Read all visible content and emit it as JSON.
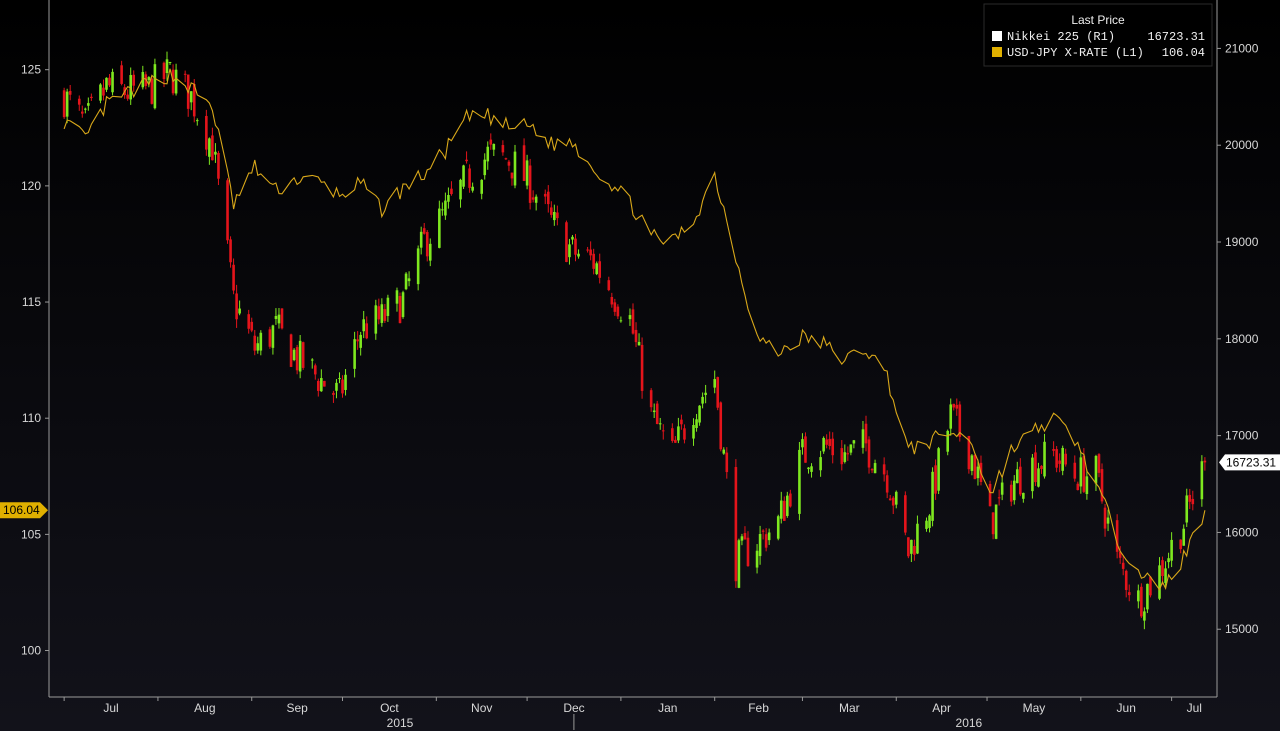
{
  "chart_data": {
    "type": "candlestick+line",
    "legend": {
      "title": "Last Price",
      "entries": [
        {
          "name": "Nikkei 225 (R1)",
          "value": "16723.31",
          "color": "#ffffff"
        },
        {
          "name": "USD-JPY X-RATE (L1)",
          "value": "106.04",
          "color": "#e0b000"
        }
      ],
      "placement": "top-right"
    },
    "x_axis": {
      "months": [
        "Jul",
        "Aug",
        "Sep",
        "Oct",
        "Nov",
        "Dec",
        "Jan",
        "Feb",
        "Mar",
        "Apr",
        "May",
        "Jun",
        "Jul"
      ],
      "years": [
        "2015",
        "2016"
      ]
    },
    "left_axis": {
      "ticks": [
        100,
        105,
        110,
        115,
        120,
        125
      ],
      "range": [
        98,
        128
      ]
    },
    "right_axis": {
      "ticks": [
        15000,
        16000,
        17000,
        18000,
        19000,
        20000,
        21000
      ],
      "range": [
        14300,
        21500
      ]
    },
    "last_labels": {
      "left": "106.04",
      "right": "16723.31"
    },
    "colors": {
      "up": "#7ee81f",
      "down": "#e4141b",
      "fx_line": "#d9a81a"
    },
    "usdjpy_weekly": [
      [
        "2015-07-01",
        122.8
      ],
      [
        "2015-07-08",
        122.0
      ],
      [
        "2015-07-15",
        123.5
      ],
      [
        "2015-07-22",
        124.0
      ],
      [
        "2015-07-29",
        124.4
      ],
      [
        "2015-08-05",
        124.8
      ],
      [
        "2015-08-12",
        124.2
      ],
      [
        "2015-08-19",
        123.4
      ],
      [
        "2015-08-26",
        119.2
      ],
      [
        "2015-09-02",
        120.8
      ],
      [
        "2015-09-09",
        119.8
      ],
      [
        "2015-09-16",
        120.3
      ],
      [
        "2015-09-23",
        120.2
      ],
      [
        "2015-09-30",
        119.6
      ],
      [
        "2015-10-07",
        120.1
      ],
      [
        "2015-10-14",
        119.0
      ],
      [
        "2015-10-21",
        119.9
      ],
      [
        "2015-10-28",
        120.5
      ],
      [
        "2015-11-04",
        121.5
      ],
      [
        "2015-11-11",
        122.9
      ],
      [
        "2015-11-18",
        123.0
      ],
      [
        "2015-11-25",
        122.5
      ],
      [
        "2015-12-02",
        122.6
      ],
      [
        "2015-12-09",
        121.8
      ],
      [
        "2015-12-16",
        121.9
      ],
      [
        "2015-12-23",
        120.8
      ],
      [
        "2016-01-04",
        119.3
      ],
      [
        "2016-01-11",
        117.8
      ],
      [
        "2016-01-18",
        117.6
      ],
      [
        "2016-01-25",
        118.5
      ],
      [
        "2016-02-01",
        120.5
      ],
      [
        "2016-02-08",
        117.0
      ],
      [
        "2016-02-15",
        113.5
      ],
      [
        "2016-02-22",
        112.8
      ],
      [
        "2016-03-01",
        113.5
      ],
      [
        "2016-03-08",
        113.2
      ],
      [
        "2016-03-15",
        112.5
      ],
      [
        "2016-03-22",
        113.0
      ],
      [
        "2016-03-29",
        111.8
      ],
      [
        "2016-04-05",
        108.6
      ],
      [
        "2016-04-12",
        109.0
      ],
      [
        "2016-04-19",
        109.4
      ],
      [
        "2016-04-26",
        109.0
      ],
      [
        "2016-05-02",
        106.7
      ],
      [
        "2016-05-09",
        108.6
      ],
      [
        "2016-05-16",
        109.4
      ],
      [
        "2016-05-23",
        110.0
      ],
      [
        "2016-05-30",
        109.1
      ],
      [
        "2016-06-06",
        107.2
      ],
      [
        "2016-06-13",
        104.8
      ],
      [
        "2016-06-20",
        103.5
      ],
      [
        "2016-06-27",
        102.5
      ],
      [
        "2016-07-05",
        104.0
      ],
      [
        "2016-07-12",
        106.04
      ]
    ],
    "nikkei_weekly": [
      [
        "2015-07-01",
        20500
      ],
      [
        "2015-07-08",
        20200
      ],
      [
        "2015-07-15",
        20600
      ],
      [
        "2015-07-22",
        20550
      ],
      [
        "2015-07-29",
        20580
      ],
      [
        "2015-08-05",
        20750
      ],
      [
        "2015-08-12",
        20500
      ],
      [
        "2015-08-19",
        20000
      ],
      [
        "2015-08-26",
        18400
      ],
      [
        "2015-09-02",
        17900
      ],
      [
        "2015-09-09",
        18100
      ],
      [
        "2015-09-16",
        17800
      ],
      [
        "2015-09-23",
        17600
      ],
      [
        "2015-09-30",
        17400
      ],
      [
        "2015-10-07",
        18100
      ],
      [
        "2015-10-14",
        18200
      ],
      [
        "2015-10-21",
        18400
      ],
      [
        "2015-10-28",
        19000
      ],
      [
        "2015-11-04",
        19300
      ],
      [
        "2015-11-11",
        19650
      ],
      [
        "2015-11-18",
        19900
      ],
      [
        "2015-11-25",
        19850
      ],
      [
        "2015-12-02",
        19600
      ],
      [
        "2015-12-09",
        19200
      ],
      [
        "2015-12-16",
        18900
      ],
      [
        "2015-12-23",
        18800
      ],
      [
        "2016-01-04",
        18200
      ],
      [
        "2016-01-11",
        17200
      ],
      [
        "2016-01-18",
        16800
      ],
      [
        "2016-01-25",
        17300
      ],
      [
        "2016-02-01",
        17600
      ],
      [
        "2016-02-08",
        15700
      ],
      [
        "2016-02-15",
        15900
      ],
      [
        "2016-02-22",
        16100
      ],
      [
        "2016-03-01",
        16800
      ],
      [
        "2016-03-08",
        16900
      ],
      [
        "2016-03-15",
        16800
      ],
      [
        "2016-03-22",
        16900
      ],
      [
        "2016-03-29",
        16600
      ],
      [
        "2016-04-05",
        15800
      ],
      [
        "2016-04-12",
        16300
      ],
      [
        "2016-04-19",
        17200
      ],
      [
        "2016-04-26",
        16800
      ],
      [
        "2016-05-02",
        16100
      ],
      [
        "2016-05-09",
        16500
      ],
      [
        "2016-05-16",
        16700
      ],
      [
        "2016-05-23",
        16800
      ],
      [
        "2016-05-30",
        16600
      ],
      [
        "2016-06-06",
        16600
      ],
      [
        "2016-06-13",
        15700
      ],
      [
        "2016-06-20",
        15300
      ],
      [
        "2016-06-27",
        15600
      ],
      [
        "2016-07-05",
        16100
      ],
      [
        "2016-07-12",
        16723.31
      ]
    ]
  }
}
